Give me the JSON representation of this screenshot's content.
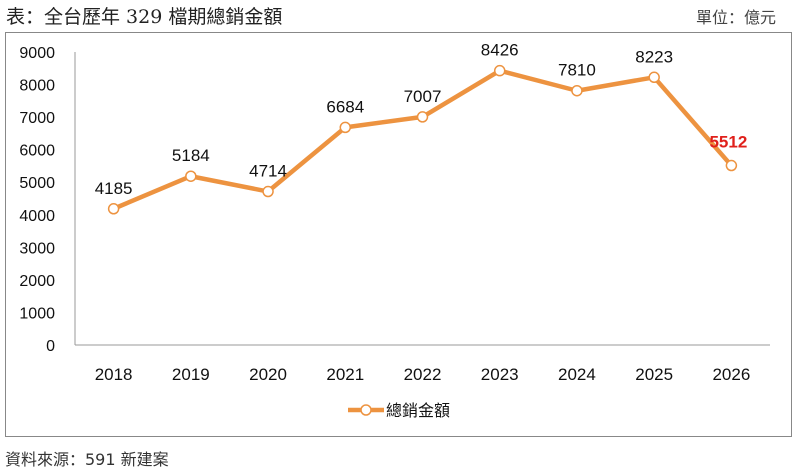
{
  "header": {
    "title": "表：全台歷年 329 檔期總銷金額",
    "unit": "單位：億元"
  },
  "footer": {
    "source": "資料來源：591 新建案"
  },
  "chart_data": {
    "type": "line",
    "categories": [
      "2018",
      "2019",
      "2020",
      "2021",
      "2022",
      "2023",
      "2024",
      "2025",
      "2026"
    ],
    "series": [
      {
        "name": "總銷金額",
        "values": [
          4185,
          5184,
          4714,
          6684,
          7007,
          8426,
          7810,
          8223,
          5512
        ]
      }
    ],
    "ylim": [
      0,
      9000
    ],
    "yticks": [
      0,
      1000,
      2000,
      3000,
      4000,
      5000,
      6000,
      7000,
      8000,
      9000
    ],
    "grid": false,
    "legend": "bottom",
    "colors": {
      "line": "#ED9340",
      "highlight_label": "#E0201B"
    },
    "highlighted_point": "2026"
  }
}
